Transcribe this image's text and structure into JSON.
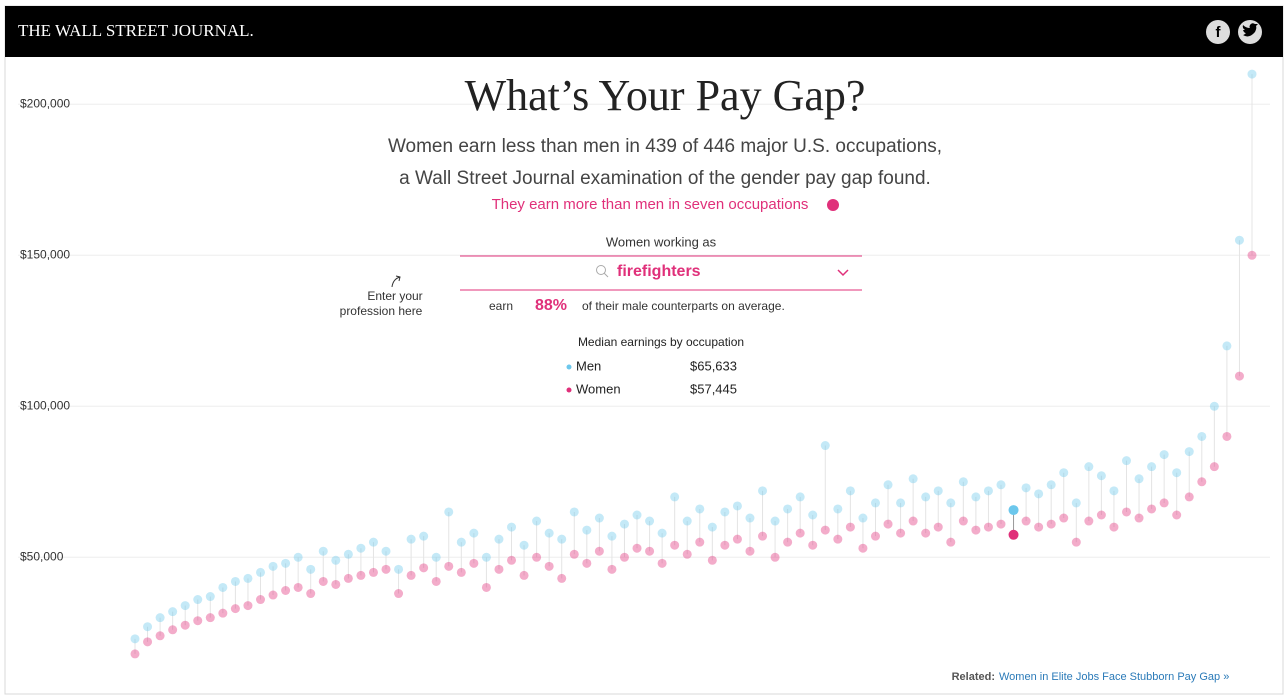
{
  "header": {
    "logo": "THE WALL STREET JOURNAL."
  },
  "chart_data": {
    "type": "scatter",
    "title": "What’s Your Pay Gap?",
    "subtitle": [
      "Women earn less than men in 439 of 446 major U.S. occupations,",
      "a Wall Street Journal examination of the gender pay gap found."
    ],
    "link": "They earn more than men in seven occupations",
    "ylim": [
      14000,
      215000
    ],
    "yticks": [
      {
        "value": 50000,
        "label": "$50,000"
      },
      {
        "value": 100000,
        "label": "$100,000"
      },
      {
        "value": 150000,
        "label": "$150,000"
      },
      {
        "value": 200000,
        "label": "$200,000"
      }
    ],
    "grid": true,
    "series": [
      {
        "name": "Men",
        "color": "#6cc7ec",
        "values": [
          23000,
          27000,
          30000,
          32000,
          34000,
          36000,
          37000,
          40000,
          42000,
          43000,
          45000,
          47000,
          48000,
          50000,
          46000,
          52000,
          49000,
          51000,
          53000,
          55000,
          52000,
          46000,
          56000,
          57000,
          50000,
          65000,
          55000,
          58000,
          50000,
          56000,
          60000,
          54000,
          62000,
          58000,
          56000,
          65000,
          59000,
          63000,
          57000,
          61000,
          64000,
          62000,
          58000,
          70000,
          62000,
          66000,
          60000,
          65000,
          67000,
          63000,
          72000,
          62000,
          66000,
          70000,
          64000,
          87000,
          66000,
          72000,
          63000,
          68000,
          74000,
          68000,
          76000,
          70000,
          72000,
          68000,
          75000,
          70000,
          72000,
          74000,
          65633,
          73000,
          71000,
          74000,
          78000,
          68000,
          80000,
          77000,
          72000,
          82000,
          76000,
          80000,
          84000,
          78000,
          85000,
          90000,
          100000,
          120000,
          155000,
          210000
        ]
      },
      {
        "name": "Women",
        "color": "#e0307a",
        "values": [
          18000,
          22000,
          24000,
          26000,
          27500,
          29000,
          30000,
          31500,
          33000,
          34000,
          36000,
          37500,
          39000,
          40000,
          38000,
          42000,
          41000,
          43000,
          44000,
          45000,
          46000,
          38000,
          44000,
          46500,
          42000,
          47000,
          45000,
          48000,
          40000,
          46000,
          49000,
          44000,
          50000,
          47000,
          43000,
          51000,
          48000,
          52000,
          46000,
          50000,
          53000,
          52000,
          48000,
          54000,
          51000,
          55000,
          49000,
          54000,
          56000,
          52000,
          57000,
          50000,
          55000,
          58000,
          54000,
          59000,
          56000,
          60000,
          53000,
          57000,
          61000,
          58000,
          62000,
          58000,
          60000,
          55000,
          62000,
          59000,
          60000,
          61000,
          57445,
          62000,
          60000,
          61000,
          63000,
          55000,
          62000,
          64000,
          60000,
          65000,
          63000,
          66000,
          68000,
          64000,
          70000,
          75000,
          80000,
          90000,
          110000,
          150000
        ]
      }
    ],
    "selector": {
      "label": "Women working as",
      "occupation": "firefighters",
      "prompt": [
        "Enter your",
        "profession here"
      ],
      "earn": "earn",
      "ratio": 88,
      "ratio_label": "88%",
      "ratio_text": "of their male counterparts on average.",
      "panel_title": "Median earnings by occupation",
      "men": 65633,
      "men_label": "$65,633",
      "women": 57445,
      "women_label": "$57,445"
    }
  },
  "footer": {
    "related": "Related:",
    "link": "Women in Elite Jobs Face Stubborn Pay Gap »"
  }
}
